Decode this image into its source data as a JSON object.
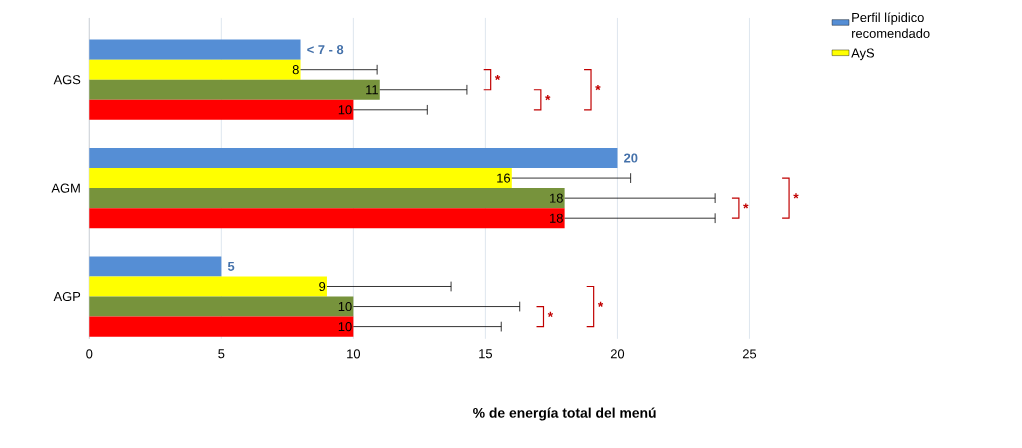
{
  "chart_data": {
    "type": "bar",
    "orientation": "horizontal",
    "xlabel": "% de energía total del menú",
    "categories": [
      "AGS",
      "AGM",
      "AGP"
    ],
    "series": [
      {
        "name": "Perfil lípidico recomendado",
        "color": "#558ed5",
        "values": [
          8,
          20,
          5
        ],
        "value_labels": [
          "< 7 - 8",
          "20",
          "5"
        ]
      },
      {
        "name": "AyS",
        "color": "#ffff00",
        "values": [
          8,
          16,
          9
        ],
        "errors": [
          [
            8,
            10.9
          ],
          [
            16,
            20.5
          ],
          [
            9,
            13.7
          ]
        ],
        "value_labels": [
          "8",
          "16",
          "9"
        ]
      },
      {
        "color": "#77933c",
        "values": [
          11,
          18,
          10
        ],
        "errors": [
          [
            11,
            14.3
          ],
          [
            18,
            23.7
          ],
          [
            10,
            16.3
          ]
        ],
        "value_labels": [
          "11",
          "18",
          "10"
        ]
      },
      {
        "color": "#ff0000",
        "values": [
          10,
          18,
          10
        ],
        "errors": [
          [
            10,
            12.8
          ],
          [
            18,
            23.7
          ],
          [
            10,
            15.6
          ]
        ],
        "value_labels": [
          "10",
          "18",
          "10"
        ]
      }
    ],
    "xlim": [
      0,
      25
    ],
    "xticks": [
      0,
      5,
      10,
      15,
      20,
      25
    ],
    "grid": "x",
    "legend": "right",
    "annotations": [
      "*",
      "*",
      "*",
      "*",
      "*",
      "*",
      "*"
    ]
  }
}
